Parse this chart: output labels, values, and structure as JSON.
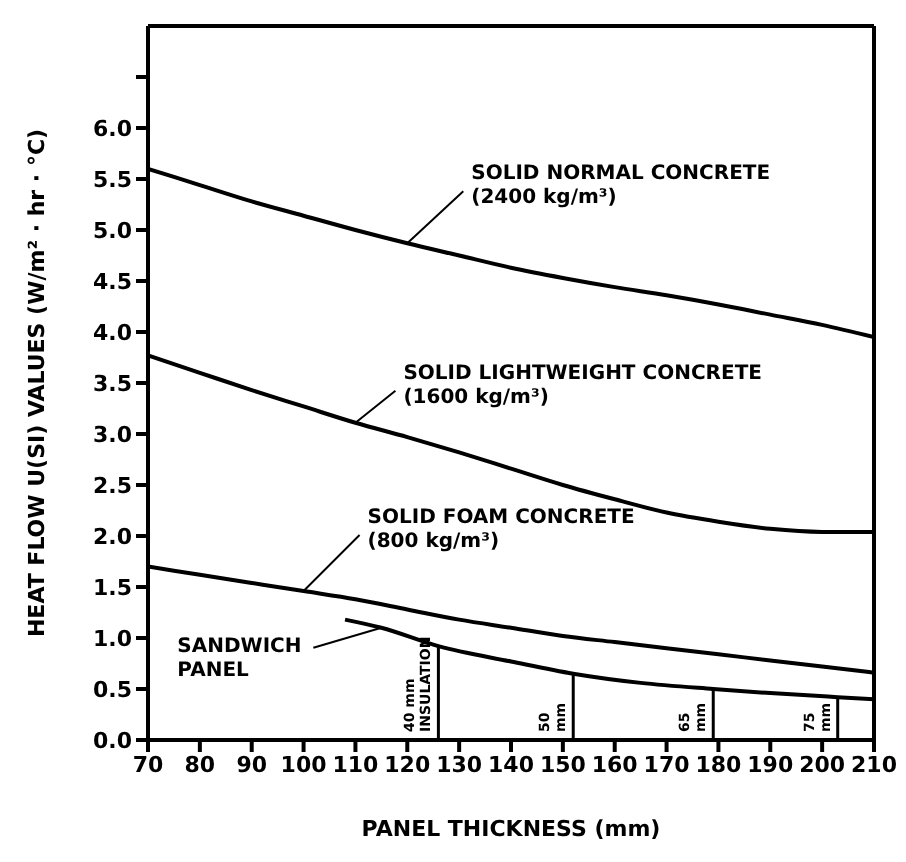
{
  "chart_data": {
    "type": "line",
    "xlabel": "PANEL THICKNESS (mm)",
    "ylabel": "HEAT FLOW U(SI) VALUES (W/m² · hr · °C)",
    "x": [
      70,
      80,
      90,
      100,
      110,
      120,
      130,
      140,
      150,
      160,
      170,
      180,
      190,
      200,
      210
    ],
    "series": [
      {
        "name": "SOLID NORMAL CONCRETE\n(2400 kg/m³)",
        "color": "#000000",
        "values": [
          5.6,
          5.44,
          5.28,
          5.14,
          5.0,
          4.87,
          4.75,
          4.63,
          4.53,
          4.44,
          4.36,
          4.27,
          4.17,
          4.07,
          3.95
        ]
      },
      {
        "name": "SOLID LIGHTWEIGHT CONCRETE\n(1600 kg/m³)",
        "color": "#000000",
        "values": [
          3.77,
          3.6,
          3.43,
          3.27,
          3.11,
          2.97,
          2.82,
          2.66,
          2.5,
          2.36,
          2.23,
          2.14,
          2.07,
          2.04,
          2.04
        ]
      },
      {
        "name": "SOLID FOAM CONCRETE\n(800 kg/m³)",
        "color": "#000000",
        "values": [
          1.7,
          1.62,
          1.54,
          1.46,
          1.38,
          1.28,
          1.18,
          1.1,
          1.02,
          0.96,
          0.9,
          0.84,
          0.78,
          0.72,
          0.66
        ]
      },
      {
        "name": "SANDWICH\nPANEL",
        "color": "#000000",
        "x": [
          108,
          115,
          126,
          140,
          152,
          165,
          179,
          190,
          203,
          210
        ],
        "values": [
          1.18,
          1.1,
          0.92,
          0.77,
          0.65,
          0.56,
          0.5,
          0.46,
          0.42,
          0.4
        ]
      }
    ],
    "annotations": [
      {
        "text": "40 mm\nINSULATION",
        "x": 126,
        "y": 0.92
      },
      {
        "text": "50\nmm",
        "x": 152,
        "y": 0.65
      },
      {
        "text": "65\nmm",
        "x": 179,
        "y": 0.5
      },
      {
        "text": "75\nmm",
        "x": 203,
        "y": 0.42
      }
    ],
    "xlim": [
      70,
      210
    ],
    "xticks": [
      70,
      80,
      90,
      100,
      110,
      120,
      130,
      140,
      150,
      160,
      170,
      180,
      190,
      200,
      210
    ],
    "ylim": [
      0,
      7
    ],
    "yticks": [
      {
        "value": 0,
        "label": "0.0"
      },
      {
        "value": 0.5,
        "label": "0.5"
      },
      {
        "value": 1,
        "label": "1.0"
      },
      {
        "value": 1.5,
        "label": "1.5"
      },
      {
        "value": 2,
        "label": "2.0"
      },
      {
        "value": 2.5,
        "label": "2.5"
      },
      {
        "value": 3,
        "label": "3.0"
      },
      {
        "value": 3.5,
        "label": "3.5"
      },
      {
        "value": 4,
        "label": "4.0"
      },
      {
        "value": 4.5,
        "label": "4.5"
      },
      {
        "value": 5,
        "label": "5.0"
      },
      {
        "value": 5.5,
        "label": "5.5"
      },
      {
        "value": 6,
        "label": "6.0"
      },
      {
        "value": 6.5,
        "label": null
      }
    ],
    "marker": "none",
    "line_style": "solid"
  }
}
